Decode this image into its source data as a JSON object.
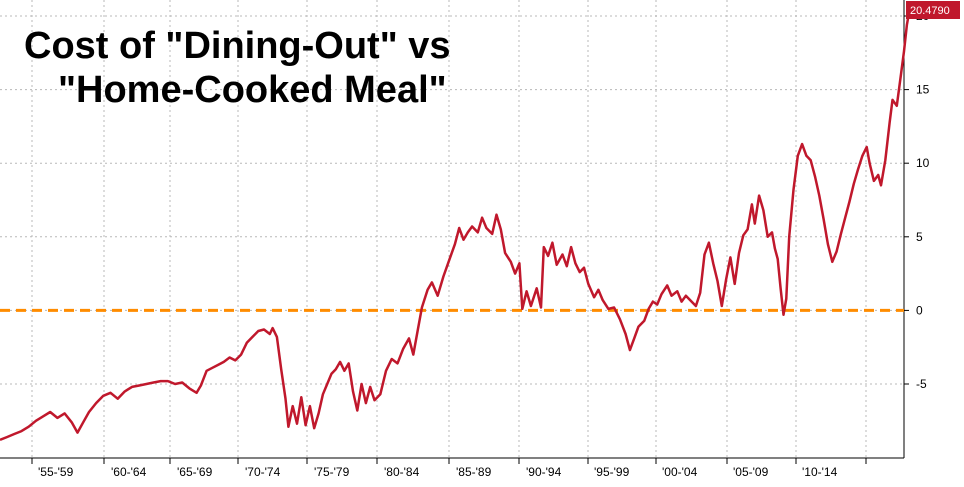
{
  "chart_data": {
    "type": "line",
    "title": "Cost of \"Dining-Out\" vs",
    "subtitle": "\"Home-Cooked Meal\"",
    "xlabel": "",
    "ylabel": "",
    "x_tick_labels": [
      "'55-'59",
      "'60-'64",
      "'65-'69",
      "'70-'74",
      "'75-'79",
      "'80-'84",
      "'85-'89",
      "'90-'94",
      "'95-'99",
      "'00-'04",
      "'05-'09",
      "'10-'14"
    ],
    "y_ticks": [
      -5,
      0,
      5,
      10,
      15,
      20
    ],
    "ylim": [
      -10,
      20.5
    ],
    "xlim": [
      1953,
      2016
    ],
    "grid": true,
    "reference_line": {
      "y": 0,
      "style": "dashed",
      "color": "#ff8c00"
    },
    "last_value_label": "20.4790",
    "series": [
      {
        "color": "#c0182c",
        "points": [
          [
            1953.0,
            -8.8
          ],
          [
            1953.5,
            -8.6
          ],
          [
            1954.0,
            -8.4
          ],
          [
            1954.5,
            -8.2
          ],
          [
            1955.0,
            -7.9
          ],
          [
            1955.5,
            -7.5
          ],
          [
            1956.0,
            -7.2
          ],
          [
            1956.5,
            -6.9
          ],
          [
            1957.0,
            -7.3
          ],
          [
            1957.5,
            -7.0
          ],
          [
            1958.0,
            -7.6
          ],
          [
            1958.4,
            -8.3
          ],
          [
            1958.8,
            -7.6
          ],
          [
            1959.2,
            -6.9
          ],
          [
            1959.7,
            -6.3
          ],
          [
            1960.2,
            -5.8
          ],
          [
            1960.7,
            -5.6
          ],
          [
            1961.2,
            -6.0
          ],
          [
            1961.7,
            -5.5
          ],
          [
            1962.2,
            -5.2
          ],
          [
            1962.7,
            -5.1
          ],
          [
            1963.2,
            -5.0
          ],
          [
            1963.7,
            -4.9
          ],
          [
            1964.2,
            -4.8
          ],
          [
            1964.7,
            -4.8
          ],
          [
            1965.2,
            -5.0
          ],
          [
            1965.7,
            -4.9
          ],
          [
            1966.2,
            -5.3
          ],
          [
            1966.7,
            -5.6
          ],
          [
            1967.0,
            -5.1
          ],
          [
            1967.4,
            -4.1
          ],
          [
            1967.8,
            -3.9
          ],
          [
            1968.2,
            -3.7
          ],
          [
            1968.6,
            -3.5
          ],
          [
            1969.0,
            -3.2
          ],
          [
            1969.4,
            -3.4
          ],
          [
            1969.8,
            -3.0
          ],
          [
            1970.2,
            -2.2
          ],
          [
            1970.6,
            -1.8
          ],
          [
            1971.0,
            -1.4
          ],
          [
            1971.4,
            -1.3
          ],
          [
            1971.8,
            -1.6
          ],
          [
            1972.0,
            -1.2
          ],
          [
            1972.3,
            -1.8
          ],
          [
            1972.6,
            -4.0
          ],
          [
            1972.9,
            -6.0
          ],
          [
            1973.1,
            -7.9
          ],
          [
            1973.4,
            -6.5
          ],
          [
            1973.7,
            -7.7
          ],
          [
            1974.0,
            -5.9
          ],
          [
            1974.3,
            -7.8
          ],
          [
            1974.6,
            -6.5
          ],
          [
            1974.9,
            -8.0
          ],
          [
            1975.2,
            -7.0
          ],
          [
            1975.5,
            -5.7
          ],
          [
            1975.8,
            -5.0
          ],
          [
            1976.1,
            -4.3
          ],
          [
            1976.4,
            -4.0
          ],
          [
            1976.7,
            -3.5
          ],
          [
            1977.0,
            -4.1
          ],
          [
            1977.3,
            -3.6
          ],
          [
            1977.6,
            -5.5
          ],
          [
            1977.9,
            -6.8
          ],
          [
            1978.2,
            -5.0
          ],
          [
            1978.5,
            -6.3
          ],
          [
            1978.8,
            -5.2
          ],
          [
            1979.1,
            -6.1
          ],
          [
            1979.5,
            -5.7
          ],
          [
            1979.9,
            -4.1
          ],
          [
            1980.3,
            -3.3
          ],
          [
            1980.7,
            -3.6
          ],
          [
            1981.1,
            -2.6
          ],
          [
            1981.5,
            -1.9
          ],
          [
            1981.8,
            -3.0
          ],
          [
            1982.1,
            -1.4
          ],
          [
            1982.4,
            0.2
          ],
          [
            1982.8,
            1.4
          ],
          [
            1983.1,
            1.9
          ],
          [
            1983.5,
            1.0
          ],
          [
            1983.9,
            2.3
          ],
          [
            1984.3,
            3.4
          ],
          [
            1984.7,
            4.5
          ],
          [
            1985.0,
            5.6
          ],
          [
            1985.3,
            4.8
          ],
          [
            1985.6,
            5.3
          ],
          [
            1985.9,
            5.7
          ],
          [
            1986.3,
            5.3
          ],
          [
            1986.6,
            6.3
          ],
          [
            1986.9,
            5.6
          ],
          [
            1987.3,
            5.2
          ],
          [
            1987.6,
            6.5
          ],
          [
            1987.9,
            5.5
          ],
          [
            1988.2,
            3.9
          ],
          [
            1988.6,
            3.3
          ],
          [
            1988.9,
            2.5
          ],
          [
            1989.2,
            3.2
          ],
          [
            1989.4,
            0.1
          ],
          [
            1989.7,
            1.3
          ],
          [
            1990.0,
            0.3
          ],
          [
            1990.4,
            1.5
          ],
          [
            1990.7,
            0.2
          ],
          [
            1990.9,
            4.3
          ],
          [
            1991.2,
            3.7
          ],
          [
            1991.5,
            4.6
          ],
          [
            1991.8,
            3.1
          ],
          [
            1992.2,
            3.8
          ],
          [
            1992.5,
            3.0
          ],
          [
            1992.8,
            4.3
          ],
          [
            1993.1,
            3.2
          ],
          [
            1993.4,
            2.6
          ],
          [
            1993.7,
            2.9
          ],
          [
            1994.0,
            1.8
          ],
          [
            1994.4,
            0.9
          ],
          [
            1994.7,
            1.4
          ],
          [
            1995.0,
            0.7
          ],
          [
            1995.4,
            0.1
          ],
          [
            1995.8,
            0.2
          ],
          [
            1996.2,
            -0.6
          ],
          [
            1996.6,
            -1.6
          ],
          [
            1996.9,
            -2.7
          ],
          [
            1997.2,
            -1.9
          ],
          [
            1997.5,
            -1.1
          ],
          [
            1997.9,
            -0.7
          ],
          [
            1998.2,
            0.1
          ],
          [
            1998.5,
            0.6
          ],
          [
            1998.8,
            0.4
          ],
          [
            1999.1,
            1.1
          ],
          [
            1999.5,
            1.7
          ],
          [
            1999.8,
            1.0
          ],
          [
            2000.2,
            1.3
          ],
          [
            2000.5,
            0.6
          ],
          [
            2000.8,
            1.0
          ],
          [
            2001.2,
            0.6
          ],
          [
            2001.5,
            0.3
          ],
          [
            2001.8,
            1.2
          ],
          [
            2002.1,
            3.8
          ],
          [
            2002.4,
            4.6
          ],
          [
            2002.7,
            3.2
          ],
          [
            2003.0,
            2.0
          ],
          [
            2003.3,
            0.3
          ],
          [
            2003.6,
            2.1
          ],
          [
            2003.9,
            3.6
          ],
          [
            2004.2,
            1.8
          ],
          [
            2004.5,
            3.9
          ],
          [
            2004.8,
            5.1
          ],
          [
            2005.1,
            5.5
          ],
          [
            2005.4,
            7.2
          ],
          [
            2005.6,
            5.9
          ],
          [
            2005.9,
            7.8
          ],
          [
            2006.2,
            6.8
          ],
          [
            2006.5,
            5.0
          ],
          [
            2006.8,
            5.3
          ],
          [
            2007.0,
            4.2
          ],
          [
            2007.2,
            3.5
          ],
          [
            2007.4,
            1.5
          ],
          [
            2007.6,
            -0.3
          ],
          [
            2007.8,
            0.8
          ],
          [
            2008.0,
            5.0
          ],
          [
            2008.3,
            8.2
          ],
          [
            2008.6,
            10.5
          ],
          [
            2008.9,
            11.3
          ],
          [
            2009.2,
            10.5
          ],
          [
            2009.5,
            10.2
          ],
          [
            2009.8,
            9.1
          ],
          [
            2010.1,
            7.8
          ],
          [
            2010.4,
            6.2
          ],
          [
            2010.7,
            4.5
          ],
          [
            2011.0,
            3.3
          ],
          [
            2011.3,
            4.0
          ],
          [
            2011.6,
            5.2
          ],
          [
            2011.9,
            6.3
          ],
          [
            2012.2,
            7.4
          ],
          [
            2012.5,
            8.6
          ],
          [
            2012.8,
            9.6
          ],
          [
            2013.1,
            10.5
          ],
          [
            2013.4,
            11.1
          ],
          [
            2013.6,
            10.0
          ],
          [
            2013.9,
            8.8
          ],
          [
            2014.2,
            9.2
          ],
          [
            2014.4,
            8.5
          ],
          [
            2014.7,
            10.2
          ],
          [
            2015.0,
            12.8
          ],
          [
            2015.2,
            14.3
          ],
          [
            2015.5,
            13.9
          ],
          [
            2015.8,
            16.1
          ],
          [
            2016.0,
            17.6
          ],
          [
            2016.2,
            19.4
          ],
          [
            2016.4,
            20.48
          ]
        ]
      }
    ]
  }
}
